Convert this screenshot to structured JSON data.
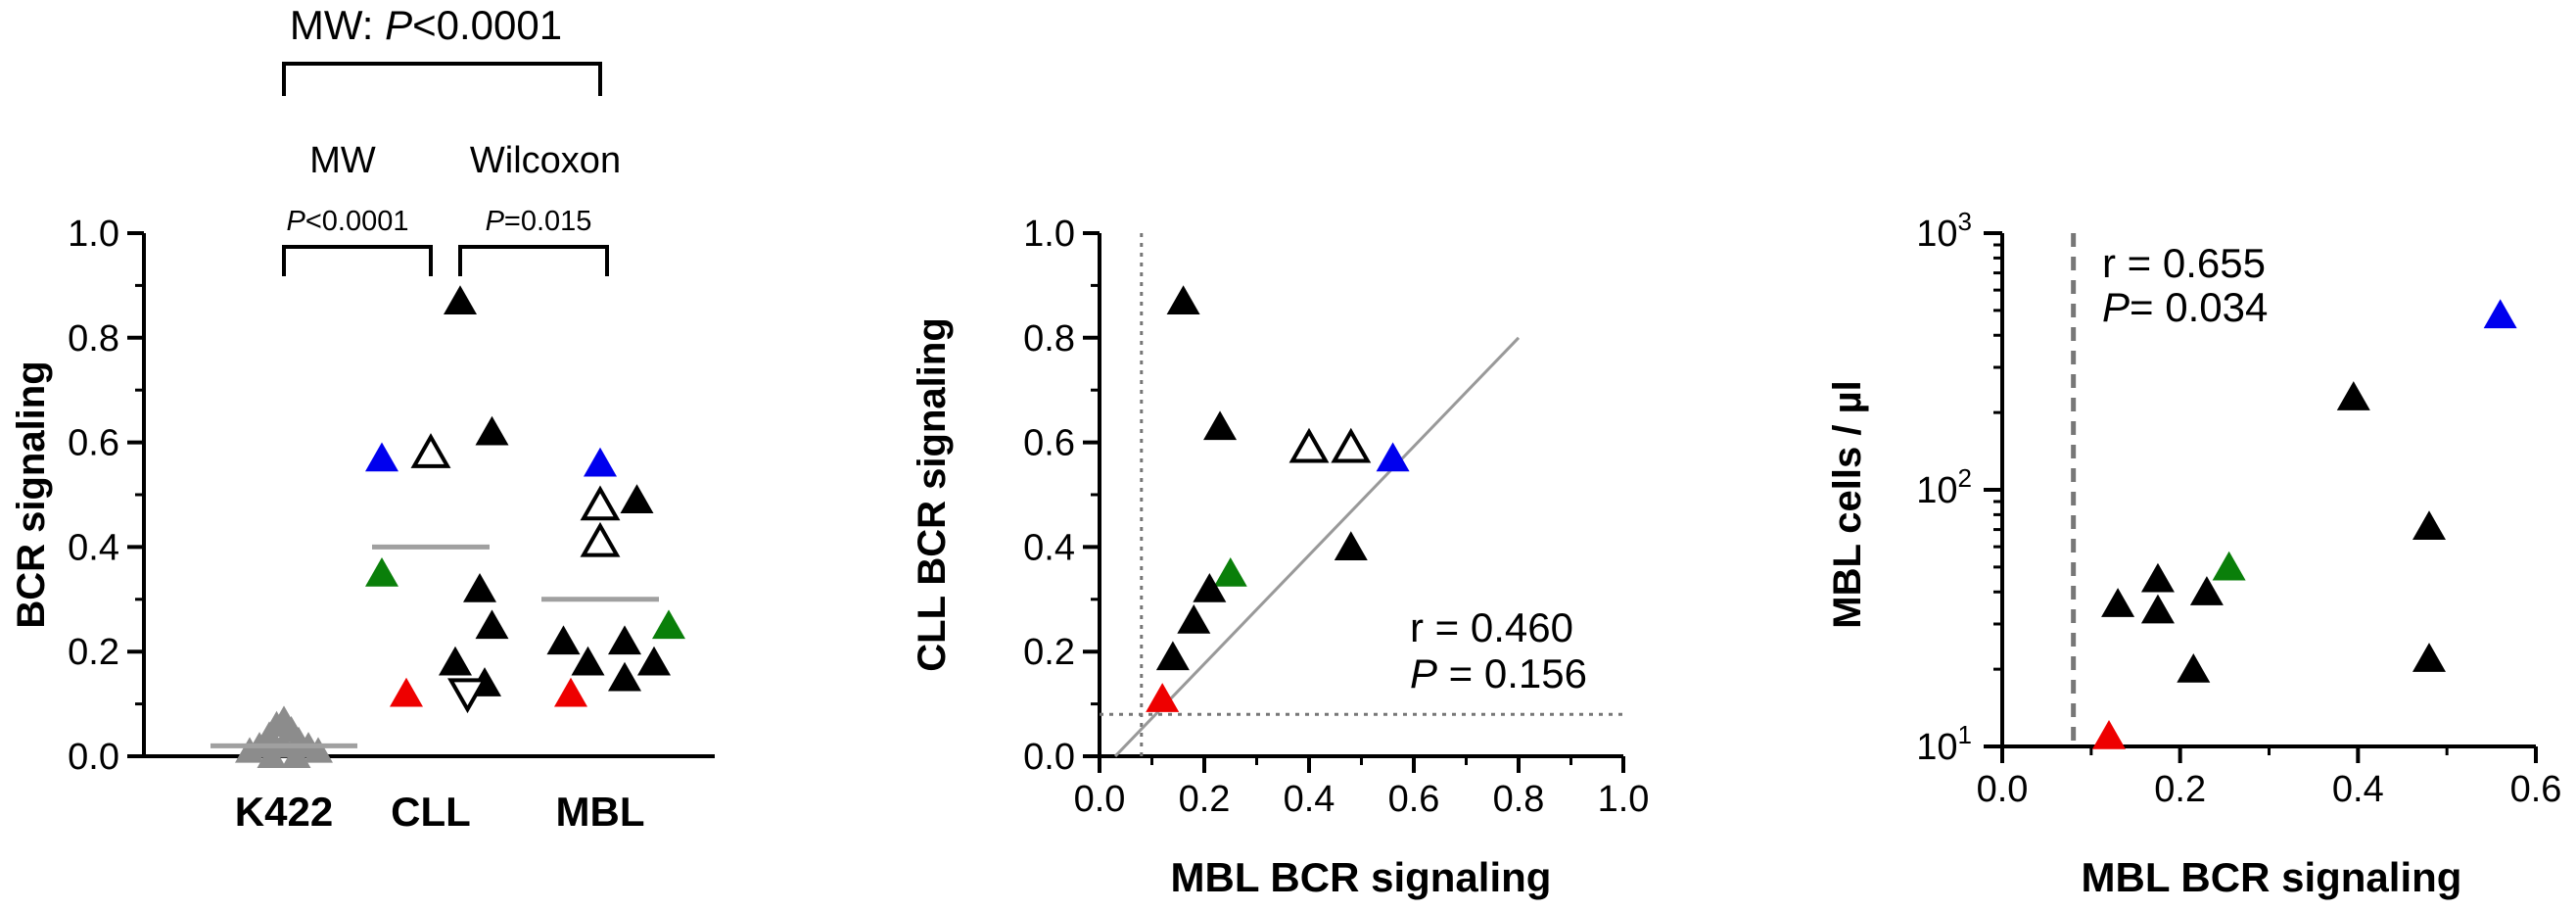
{
  "chart_data": [
    {
      "type": "scatter",
      "subtype": "dot-plot",
      "ylabel": "BCR signaling",
      "ylim": [
        0,
        1.0
      ],
      "yticks": [
        "0.0",
        "0.2",
        "0.4",
        "0.6",
        "0.8",
        "1.0"
      ],
      "categories": [
        "K422",
        "CLL",
        "MBL"
      ],
      "medians": [
        0.02,
        0.4,
        0.3
      ],
      "stats": {
        "top": {
          "test": "MW: ",
          "p": "P",
          "rest": "<0.0001"
        },
        "left_test": "MW",
        "left_p": {
          "p": "P",
          "rest": "<0.0001"
        },
        "right_test": "Wilcoxon",
        "right_p": {
          "p": "P",
          "rest": "=0.015"
        }
      },
      "series": [
        {
          "name": "K422",
          "points": [
            [
              -0.14,
              0.01
            ],
            [
              -0.1,
              0.02
            ],
            [
              -0.06,
              0.04
            ],
            [
              -0.03,
              0.06
            ],
            [
              0.0,
              0.07
            ],
            [
              0.03,
              0.05
            ],
            [
              0.06,
              0.03
            ],
            [
              0.1,
              0.02
            ],
            [
              0.14,
              0.01
            ],
            [
              -0.05,
              0.0
            ],
            [
              0.05,
              0.0
            ],
            [
              0.0,
              0.02
            ]
          ]
        },
        {
          "name": "CLL",
          "points": [
            [
              0.12,
              0.87,
              "black"
            ],
            [
              0.0,
              0.58,
              "open"
            ],
            [
              0.25,
              0.62,
              "black"
            ],
            [
              -0.2,
              0.57,
              "blue"
            ],
            [
              -0.2,
              0.35,
              "green"
            ],
            [
              0.2,
              0.32,
              "black"
            ],
            [
              0.25,
              0.25,
              "black"
            ],
            [
              0.1,
              0.18,
              "black"
            ],
            [
              0.22,
              0.14,
              "black"
            ],
            [
              -0.1,
              0.12,
              "red"
            ],
            [
              0.15,
              0.12,
              "open-down"
            ]
          ]
        },
        {
          "name": "MBL",
          "points": [
            [
              0.0,
              0.56,
              "blue"
            ],
            [
              0.0,
              0.48,
              "open"
            ],
            [
              0.15,
              0.49,
              "black"
            ],
            [
              0.0,
              0.41,
              "open"
            ],
            [
              -0.15,
              0.22,
              "black"
            ],
            [
              0.1,
              0.22,
              "black"
            ],
            [
              0.28,
              0.25,
              "green"
            ],
            [
              -0.05,
              0.18,
              "black"
            ],
            [
              0.22,
              0.18,
              "black"
            ],
            [
              0.1,
              0.15,
              "black"
            ],
            [
              -0.12,
              0.12,
              "red"
            ]
          ]
        }
      ]
    },
    {
      "type": "scatter",
      "xlabel": "MBL BCR signaling",
      "ylabel": "CLL BCR signaling",
      "xlim": [
        0,
        1.0
      ],
      "ylim": [
        0,
        1.0
      ],
      "xticks": [
        "0.0",
        "0.2",
        "0.4",
        "0.6",
        "0.8",
        "1.0"
      ],
      "yticks": [
        "0.0",
        "0.2",
        "0.4",
        "0.6",
        "0.8",
        "1.0"
      ],
      "threshold": 0.08,
      "fit_line": [
        [
          0.03,
          0.0
        ],
        [
          0.8,
          0.8
        ]
      ],
      "annotation": {
        "r": "r = 0.460",
        "p": "P",
        "prest": " = 0.156"
      },
      "points": [
        [
          0.16,
          0.87,
          "black"
        ],
        [
          0.23,
          0.63,
          "black"
        ],
        [
          0.4,
          0.59,
          "open"
        ],
        [
          0.48,
          0.59,
          "open"
        ],
        [
          0.56,
          0.57,
          "blue"
        ],
        [
          0.48,
          0.4,
          "black"
        ],
        [
          0.25,
          0.35,
          "green"
        ],
        [
          0.21,
          0.32,
          "black"
        ],
        [
          0.18,
          0.26,
          "black"
        ],
        [
          0.14,
          0.19,
          "black"
        ],
        [
          0.12,
          0.11,
          "red"
        ]
      ]
    },
    {
      "type": "scatter",
      "xlabel": "MBL BCR signaling",
      "ylabel": "MBL cells / µl",
      "xlim": [
        0,
        0.6
      ],
      "ylim_log": [
        1,
        3
      ],
      "xticks": [
        "0.0",
        "0.2",
        "0.4",
        "0.6"
      ],
      "yticks": [
        {
          "base": "10",
          "exp": "1"
        },
        {
          "base": "10",
          "exp": "2"
        },
        {
          "base": "10",
          "exp": "3"
        }
      ],
      "threshold": 0.08,
      "annotation": {
        "r": "r = 0.655",
        "p": "P",
        "prest": "= 0.034"
      },
      "points": [
        [
          0.56,
          480,
          "blue"
        ],
        [
          0.395,
          230,
          "black"
        ],
        [
          0.48,
          72,
          "black"
        ],
        [
          0.255,
          50,
          "green"
        ],
        [
          0.175,
          45,
          "black"
        ],
        [
          0.13,
          36,
          "black"
        ],
        [
          0.175,
          34,
          "black"
        ],
        [
          0.23,
          40,
          "black"
        ],
        [
          0.215,
          20,
          "black"
        ],
        [
          0.48,
          22,
          "black"
        ],
        [
          0.12,
          11,
          "red"
        ]
      ]
    }
  ],
  "colors": {
    "black": "#000000",
    "blue": "#0000ee",
    "green": "#0a7f0a",
    "red": "#ee0000",
    "grey": "#8c8c8c",
    "median": "#a0a0a0"
  }
}
